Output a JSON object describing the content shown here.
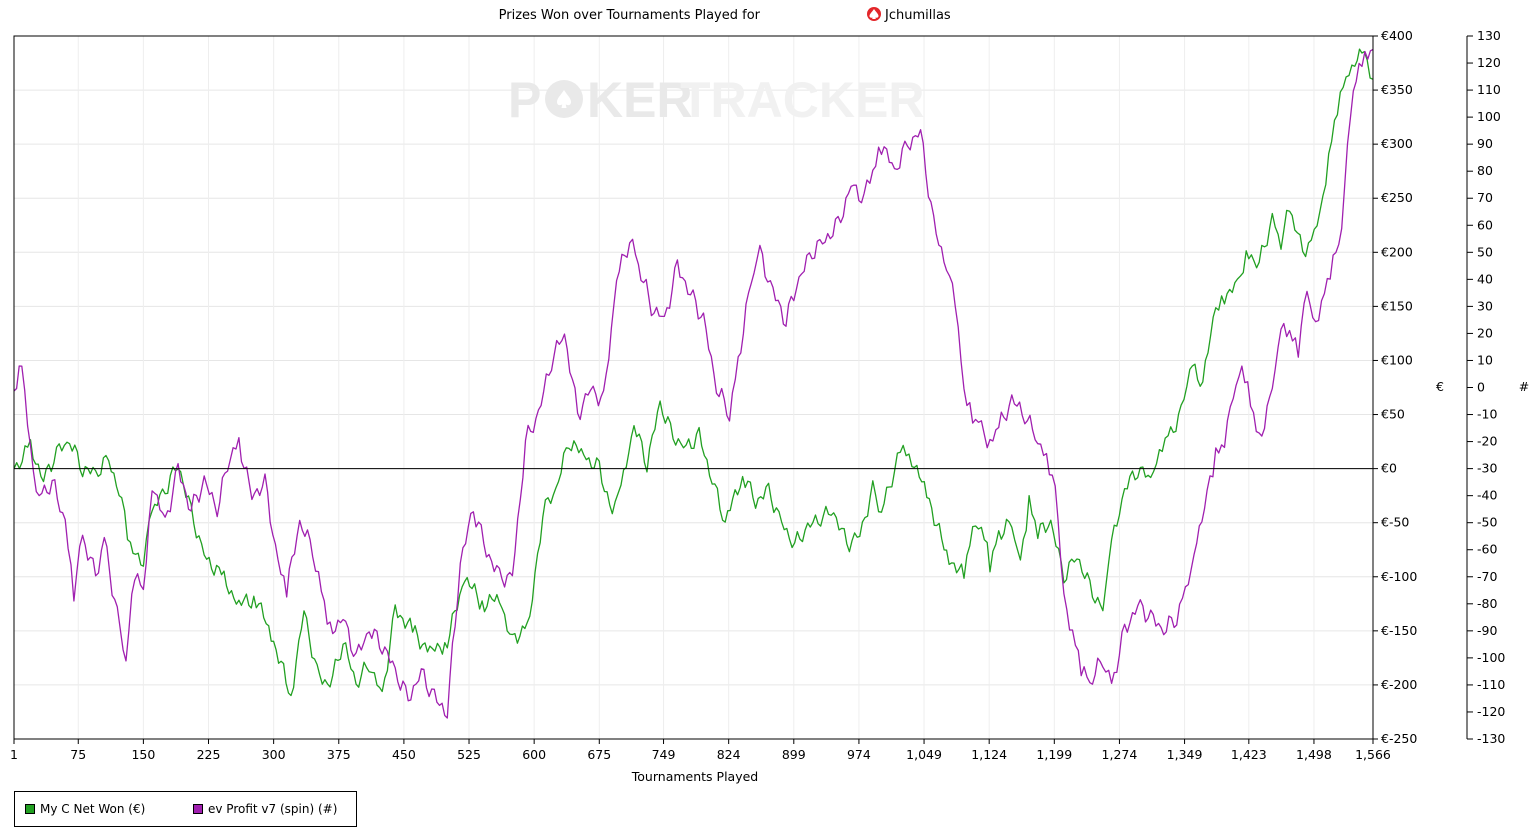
{
  "chart_data": {
    "type": "line",
    "title": "Prizes Won over Tournaments Played for",
    "player": "Jchumillas",
    "player_icon": "spade-icon",
    "watermark": {
      "strong": "P",
      "logo_letters": "KER",
      "light": "TRACKER"
    },
    "xlabel": "Tournaments Played",
    "x_ticks": [
      "1",
      "75",
      "150",
      "225",
      "300",
      "375",
      "450",
      "525",
      "600",
      "675",
      "749",
      "824",
      "899",
      "974",
      "1,049",
      "1,124",
      "1,199",
      "1,274",
      "1,349",
      "1,423",
      "1,498",
      "1,566"
    ],
    "xlim": [
      1,
      1566
    ],
    "y_left": {
      "label": "€",
      "ylim": [
        -250,
        400
      ],
      "ticks": [
        "€400",
        "€350",
        "€300",
        "€250",
        "€200",
        "€150",
        "€100",
        "€50",
        "€0",
        "€-50",
        "€-100",
        "€-150",
        "€-200",
        "€-250"
      ]
    },
    "y_right": {
      "label": "#",
      "ylim": [
        -130,
        130
      ],
      "ticks": [
        "130",
        "120",
        "110",
        "100",
        "90",
        "80",
        "70",
        "60",
        "50",
        "40",
        "30",
        "20",
        "10",
        "0",
        "-10",
        "-20",
        "-30",
        "-40",
        "-50",
        "-60",
        "-70",
        "-80",
        "-90",
        "-100",
        "-110",
        "-120",
        "-130"
      ]
    },
    "grid": true,
    "legend_position": "bottom-left",
    "series": [
      {
        "name": "My C Net Won (€)",
        "axis": "left",
        "color": "#22a022",
        "points": [
          [
            1,
            0
          ],
          [
            20,
            20
          ],
          [
            35,
            -10
          ],
          [
            50,
            15
          ],
          [
            65,
            25
          ],
          [
            80,
            0
          ],
          [
            95,
            -5
          ],
          [
            110,
            10
          ],
          [
            125,
            -30
          ],
          [
            135,
            -75
          ],
          [
            150,
            -85
          ],
          [
            160,
            -40
          ],
          [
            175,
            -20
          ],
          [
            190,
            5
          ],
          [
            205,
            -40
          ],
          [
            220,
            -80
          ],
          [
            240,
            -100
          ],
          [
            260,
            -125
          ],
          [
            280,
            -120
          ],
          [
            300,
            -160
          ],
          [
            320,
            -210
          ],
          [
            335,
            -130
          ],
          [
            350,
            -190
          ],
          [
            365,
            -200
          ],
          [
            380,
            -160
          ],
          [
            395,
            -200
          ],
          [
            410,
            -180
          ],
          [
            425,
            -210
          ],
          [
            440,
            -130
          ],
          [
            460,
            -150
          ],
          [
            480,
            -170
          ],
          [
            500,
            -160
          ],
          [
            520,
            -100
          ],
          [
            540,
            -125
          ],
          [
            560,
            -120
          ],
          [
            575,
            -160
          ],
          [
            595,
            -140
          ],
          [
            610,
            -40
          ],
          [
            625,
            -20
          ],
          [
            640,
            25
          ],
          [
            660,
            10
          ],
          [
            675,
            0
          ],
          [
            690,
            -40
          ],
          [
            700,
            -20
          ],
          [
            715,
            40
          ],
          [
            730,
            5
          ],
          [
            745,
            60
          ],
          [
            760,
            30
          ],
          [
            775,
            20
          ],
          [
            790,
            30
          ],
          [
            805,
            -10
          ],
          [
            820,
            -50
          ],
          [
            840,
            -5
          ],
          [
            855,
            -30
          ],
          [
            870,
            -20
          ],
          [
            885,
            -50
          ],
          [
            900,
            -70
          ],
          [
            915,
            -55
          ],
          [
            930,
            -45
          ],
          [
            945,
            -40
          ],
          [
            960,
            -70
          ],
          [
            975,
            -60
          ],
          [
            990,
            -20
          ],
          [
            1000,
            -40
          ],
          [
            1015,
            0
          ],
          [
            1025,
            20
          ],
          [
            1035,
            10
          ],
          [
            1055,
            -30
          ],
          [
            1075,
            -80
          ],
          [
            1095,
            -100
          ],
          [
            1105,
            -60
          ],
          [
            1115,
            -50
          ],
          [
            1125,
            -90
          ],
          [
            1135,
            -60
          ],
          [
            1150,
            -50
          ],
          [
            1160,
            -90
          ],
          [
            1170,
            -30
          ],
          [
            1180,
            -60
          ],
          [
            1195,
            -50
          ],
          [
            1210,
            -100
          ],
          [
            1225,
            -80
          ],
          [
            1240,
            -110
          ],
          [
            1255,
            -130
          ],
          [
            1265,
            -70
          ],
          [
            1280,
            -20
          ],
          [
            1295,
            0
          ],
          [
            1310,
            -10
          ],
          [
            1320,
            20
          ],
          [
            1330,
            30
          ],
          [
            1345,
            50
          ],
          [
            1355,
            95
          ],
          [
            1370,
            80
          ],
          [
            1385,
            150
          ],
          [
            1395,
            160
          ],
          [
            1410,
            170
          ],
          [
            1420,
            200
          ],
          [
            1435,
            190
          ],
          [
            1450,
            230
          ],
          [
            1460,
            210
          ],
          [
            1470,
            240
          ],
          [
            1485,
            200
          ],
          [
            1495,
            215
          ],
          [
            1505,
            230
          ],
          [
            1515,
            290
          ],
          [
            1525,
            330
          ],
          [
            1535,
            360
          ],
          [
            1545,
            380
          ],
          [
            1556,
            385
          ],
          [
            1566,
            360
          ]
        ]
      },
      {
        "name": "ev Profit v7 (spin) (#)",
        "axis": "right",
        "color": "#a020b0",
        "points": [
          [
            1,
            0
          ],
          [
            10,
            10
          ],
          [
            20,
            -25
          ],
          [
            30,
            -40
          ],
          [
            45,
            -35
          ],
          [
            60,
            -50
          ],
          [
            70,
            -75
          ],
          [
            80,
            -55
          ],
          [
            95,
            -70
          ],
          [
            105,
            -55
          ],
          [
            120,
            -85
          ],
          [
            130,
            -100
          ],
          [
            140,
            -70
          ],
          [
            150,
            -75
          ],
          [
            160,
            -35
          ],
          [
            175,
            -50
          ],
          [
            190,
            -30
          ],
          [
            205,
            -45
          ],
          [
            220,
            -35
          ],
          [
            235,
            -45
          ],
          [
            250,
            -25
          ],
          [
            260,
            -20
          ],
          [
            275,
            -40
          ],
          [
            290,
            -35
          ],
          [
            305,
            -65
          ],
          [
            315,
            -75
          ],
          [
            330,
            -50
          ],
          [
            345,
            -60
          ],
          [
            355,
            -75
          ],
          [
            365,
            -90
          ],
          [
            380,
            -85
          ],
          [
            395,
            -100
          ],
          [
            410,
            -90
          ],
          [
            425,
            -95
          ],
          [
            440,
            -105
          ],
          [
            455,
            -115
          ],
          [
            470,
            -105
          ],
          [
            485,
            -115
          ],
          [
            500,
            -120
          ],
          [
            515,
            -65
          ],
          [
            530,
            -45
          ],
          [
            545,
            -60
          ],
          [
            560,
            -70
          ],
          [
            575,
            -70
          ],
          [
            590,
            -20
          ],
          [
            605,
            -10
          ],
          [
            620,
            10
          ],
          [
            635,
            20
          ],
          [
            650,
            -10
          ],
          [
            665,
            0
          ],
          [
            680,
            -5
          ],
          [
            695,
            40
          ],
          [
            710,
            55
          ],
          [
            720,
            45
          ],
          [
            735,
            30
          ],
          [
            750,
            25
          ],
          [
            765,
            45
          ],
          [
            780,
            35
          ],
          [
            795,
            25
          ],
          [
            810,
            0
          ],
          [
            825,
            -10
          ],
          [
            835,
            10
          ],
          [
            850,
            40
          ],
          [
            860,
            50
          ],
          [
            875,
            35
          ],
          [
            890,
            25
          ],
          [
            905,
            40
          ],
          [
            920,
            50
          ],
          [
            935,
            55
          ],
          [
            950,
            60
          ],
          [
            965,
            75
          ],
          [
            980,
            70
          ],
          [
            990,
            80
          ],
          [
            1000,
            90
          ],
          [
            1015,
            80
          ],
          [
            1030,
            90
          ],
          [
            1045,
            95
          ],
          [
            1060,
            60
          ],
          [
            1075,
            45
          ],
          [
            1085,
            30
          ],
          [
            1095,
            0
          ],
          [
            1105,
            -10
          ],
          [
            1115,
            -15
          ],
          [
            1125,
            -20
          ],
          [
            1135,
            -15
          ],
          [
            1150,
            -5
          ],
          [
            1165,
            -10
          ],
          [
            1180,
            -20
          ],
          [
            1190,
            -25
          ],
          [
            1200,
            -35
          ],
          [
            1210,
            -80
          ],
          [
            1220,
            -90
          ],
          [
            1230,
            -105
          ],
          [
            1240,
            -110
          ],
          [
            1255,
            -100
          ],
          [
            1265,
            -110
          ],
          [
            1280,
            -90
          ],
          [
            1295,
            -80
          ],
          [
            1310,
            -85
          ],
          [
            1325,
            -90
          ],
          [
            1340,
            -85
          ],
          [
            1350,
            -75
          ],
          [
            1360,
            -60
          ],
          [
            1375,
            -40
          ],
          [
            1385,
            -25
          ],
          [
            1395,
            -20
          ],
          [
            1405,
            -5
          ],
          [
            1415,
            10
          ],
          [
            1425,
            -5
          ],
          [
            1435,
            -20
          ],
          [
            1450,
            0
          ],
          [
            1460,
            20
          ],
          [
            1470,
            20
          ],
          [
            1480,
            15
          ],
          [
            1490,
            35
          ],
          [
            1500,
            25
          ],
          [
            1510,
            35
          ],
          [
            1520,
            45
          ],
          [
            1530,
            60
          ],
          [
            1540,
            100
          ],
          [
            1550,
            120
          ],
          [
            1560,
            125
          ],
          [
            1566,
            125
          ]
        ]
      }
    ]
  },
  "legend": {
    "items": [
      {
        "label": "My C Net Won (€)",
        "color": "#22a022"
      },
      {
        "label": "ev Profit v7 (spin) (#)",
        "color": "#a020b0"
      }
    ]
  }
}
